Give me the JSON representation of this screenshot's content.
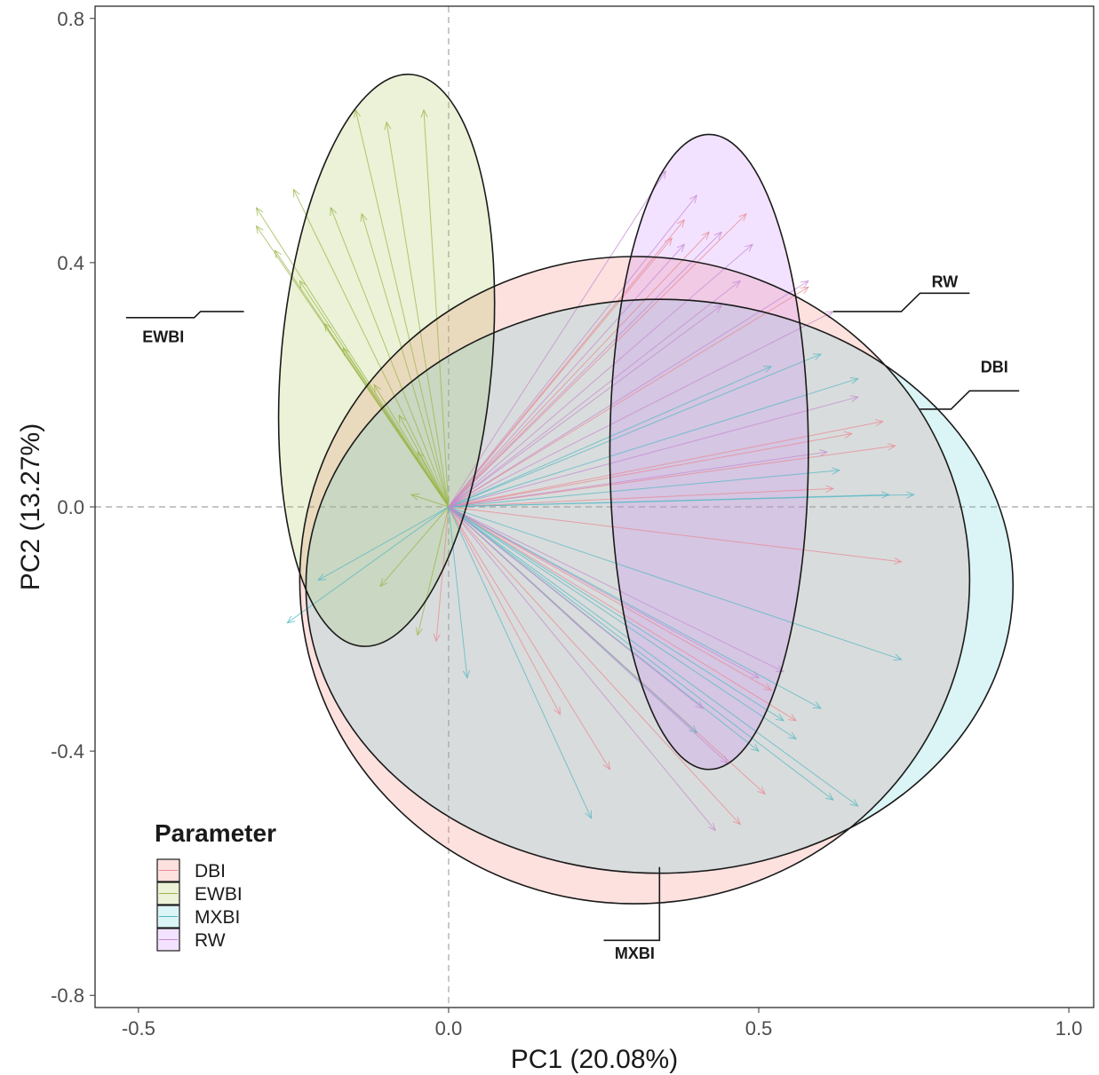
{
  "chart_data": {
    "type": "scatter",
    "subtype": "pca-biplot",
    "xlabel": "PC1 (20.08%)",
    "ylabel": "PC2 (13.27%)",
    "xlim": [
      -0.57,
      1.04
    ],
    "ylim": [
      -0.82,
      0.82
    ],
    "x_ticks": [
      -0.5,
      0.0,
      0.5,
      1.0
    ],
    "x_tick_labels": [
      "-0.5",
      "0.0",
      "0.5",
      "1.0"
    ],
    "y_ticks": [
      -0.8,
      -0.4,
      0.0,
      0.4,
      0.8
    ],
    "y_tick_labels": [
      "-0.8",
      "-0.4",
      "0.0",
      "0.4",
      "0.8"
    ],
    "grid": false,
    "reference_lines": {
      "x": 0,
      "y": 0,
      "style": "dashed"
    },
    "legend": {
      "title": "Parameter",
      "position": "bottom-left",
      "entries": [
        "DBI",
        "EWBI",
        "MXBI",
        "RW"
      ]
    },
    "groups": [
      {
        "name": "DBI",
        "fill": "#F8766D",
        "arrow_color": "#E88A94",
        "ellipse": {
          "cx": 0.3,
          "cy": -0.12,
          "rx": 0.54,
          "ry": 0.53,
          "angle_deg": 0
        },
        "label": {
          "text": "DBI",
          "x": 0.88,
          "y": 0.22
        },
        "callout": [
          [
            0.76,
            0.16
          ],
          [
            0.81,
            0.16
          ],
          [
            0.84,
            0.19
          ],
          [
            0.92,
            0.19
          ]
        ],
        "vectors": [
          [
            0.36,
            0.44
          ],
          [
            0.38,
            0.47
          ],
          [
            0.42,
            0.45
          ],
          [
            0.48,
            0.48
          ],
          [
            0.58,
            0.36
          ],
          [
            0.65,
            0.12
          ],
          [
            0.7,
            0.14
          ],
          [
            0.72,
            0.1
          ],
          [
            0.62,
            0.03
          ],
          [
            0.73,
            -0.09
          ],
          [
            0.52,
            -0.3
          ],
          [
            0.56,
            -0.35
          ],
          [
            0.51,
            -0.47
          ],
          [
            0.47,
            -0.52
          ],
          [
            0.26,
            -0.43
          ],
          [
            0.18,
            -0.34
          ],
          [
            -0.02,
            -0.22
          ]
        ]
      },
      {
        "name": "EWBI",
        "fill": "#A3C24A",
        "arrow_color": "#9BB54A",
        "ellipse": {
          "cx": -0.1,
          "cy": 0.24,
          "rx": 0.17,
          "ry": 0.47,
          "angle_deg": -5
        },
        "label": {
          "text": "EWBI",
          "x": -0.46,
          "y": 0.27
        },
        "callout": [
          [
            -0.52,
            0.31
          ],
          [
            -0.41,
            0.31
          ],
          [
            -0.4,
            0.32
          ],
          [
            -0.33,
            0.32
          ]
        ],
        "vectors": [
          [
            -0.15,
            0.65
          ],
          [
            -0.1,
            0.63
          ],
          [
            -0.04,
            0.65
          ],
          [
            -0.25,
            0.52
          ],
          [
            -0.19,
            0.49
          ],
          [
            -0.14,
            0.48
          ],
          [
            -0.31,
            0.49
          ],
          [
            -0.31,
            0.46
          ],
          [
            -0.28,
            0.42
          ],
          [
            -0.24,
            0.37
          ],
          [
            -0.2,
            0.3
          ],
          [
            -0.17,
            0.26
          ],
          [
            -0.12,
            0.2
          ],
          [
            -0.08,
            0.15
          ],
          [
            -0.05,
            0.09
          ],
          [
            -0.06,
            0.02
          ],
          [
            -0.11,
            -0.13
          ],
          [
            -0.05,
            -0.21
          ]
        ]
      },
      {
        "name": "MXBI",
        "fill": "#5CCBD0",
        "arrow_color": "#55B8C4",
        "ellipse": {
          "cx": 0.34,
          "cy": -0.13,
          "rx": 0.57,
          "ry": 0.47,
          "angle_deg": 0
        },
        "label": {
          "text": "MXBI",
          "x": 0.3,
          "y": -0.74
        },
        "callout": [
          [
            0.34,
            -0.59
          ],
          [
            0.34,
            -0.71
          ],
          [
            0.25,
            -0.71
          ]
        ],
        "vectors": [
          [
            0.52,
            0.23
          ],
          [
            0.6,
            0.25
          ],
          [
            0.66,
            0.21
          ],
          [
            0.75,
            0.02
          ],
          [
            0.71,
            0.02
          ],
          [
            0.63,
            0.06
          ],
          [
            0.73,
            -0.25
          ],
          [
            0.6,
            -0.33
          ],
          [
            0.54,
            -0.35
          ],
          [
            0.4,
            -0.37
          ],
          [
            0.5,
            -0.4
          ],
          [
            0.56,
            -0.38
          ],
          [
            0.66,
            -0.49
          ],
          [
            0.62,
            -0.48
          ],
          [
            0.23,
            -0.51
          ],
          [
            0.03,
            -0.28
          ],
          [
            -0.26,
            -0.19
          ],
          [
            -0.21,
            -0.12
          ]
        ]
      },
      {
        "name": "RW",
        "fill": "#C77CFF",
        "arrow_color": "#C58BD0",
        "ellipse": {
          "cx": 0.42,
          "cy": 0.09,
          "rx": 0.16,
          "ry": 0.52,
          "angle_deg": 0
        },
        "label": {
          "text": "RW",
          "x": 0.8,
          "y": 0.36
        },
        "callout": [
          [
            0.62,
            0.32
          ],
          [
            0.73,
            0.32
          ],
          [
            0.76,
            0.35
          ],
          [
            0.84,
            0.35
          ]
        ],
        "vectors": [
          [
            0.35,
            0.55
          ],
          [
            0.4,
            0.51
          ],
          [
            0.38,
            0.43
          ],
          [
            0.44,
            0.45
          ],
          [
            0.49,
            0.43
          ],
          [
            0.47,
            0.37
          ],
          [
            0.44,
            0.33
          ],
          [
            0.58,
            0.37
          ],
          [
            0.62,
            0.32
          ],
          [
            0.66,
            0.18
          ],
          [
            0.61,
            0.09
          ],
          [
            0.54,
            -0.27
          ],
          [
            0.5,
            -0.28
          ],
          [
            0.41,
            -0.33
          ],
          [
            0.45,
            -0.42
          ],
          [
            0.43,
            -0.53
          ]
        ]
      }
    ]
  }
}
